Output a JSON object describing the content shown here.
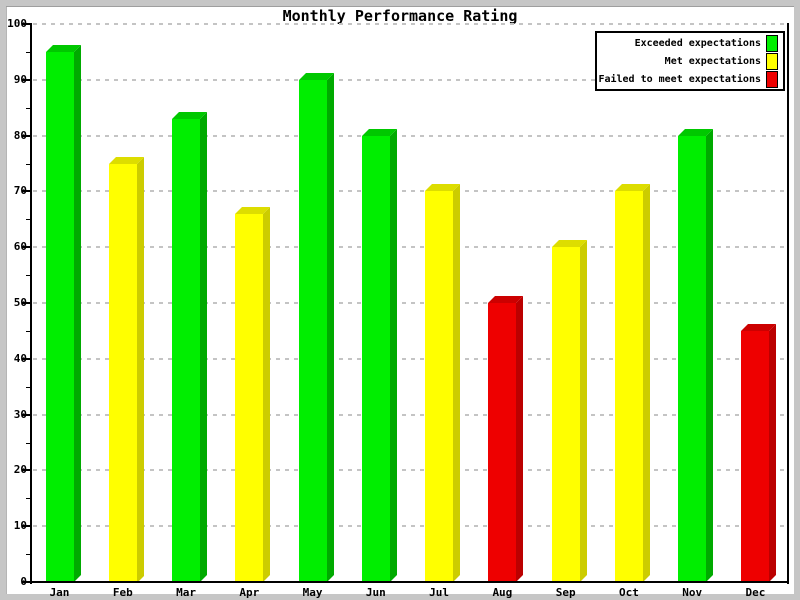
{
  "window": {
    "frame_color": "#c6c6c6",
    "background_color": "#ffffff"
  },
  "chart_data": {
    "type": "bar",
    "title": "Monthly Performance Rating",
    "categories": [
      "Jan",
      "Feb",
      "Mar",
      "Apr",
      "May",
      "Jun",
      "Jul",
      "Aug",
      "Sep",
      "Oct",
      "Nov",
      "Dec"
    ],
    "values": [
      95,
      75,
      83,
      66,
      90,
      80,
      70,
      50,
      60,
      70,
      80,
      45
    ],
    "statuses": [
      "exceeded",
      "met",
      "exceeded",
      "met",
      "exceeded",
      "exceeded",
      "met",
      "failed",
      "met",
      "met",
      "exceeded",
      "failed"
    ],
    "xlabel": "",
    "ylabel": "",
    "ylim": [
      0,
      100
    ],
    "y_major_step": 10,
    "y_minor_step": 5,
    "grid": "horizontal-dashed",
    "grid_color": "#c4c4c4",
    "bar_style": "3d",
    "colors": {
      "exceeded": {
        "front": "#00ee00",
        "top": "#00c800",
        "side": "#00aa00"
      },
      "met": {
        "front": "#ffff00",
        "top": "#dddd00",
        "side": "#cccc00"
      },
      "failed": {
        "front": "#ee0000",
        "top": "#cc0000",
        "side": "#bb0000"
      }
    },
    "legend": {
      "position": "top-right",
      "entries": [
        {
          "label": "Exceeded expectations",
          "status": "exceeded",
          "color": "#00ee00"
        },
        {
          "label": "Met expectations",
          "status": "met",
          "color": "#ffff00"
        },
        {
          "label": "Failed to meet expectations",
          "status": "failed",
          "color": "#ee0000"
        }
      ]
    }
  }
}
